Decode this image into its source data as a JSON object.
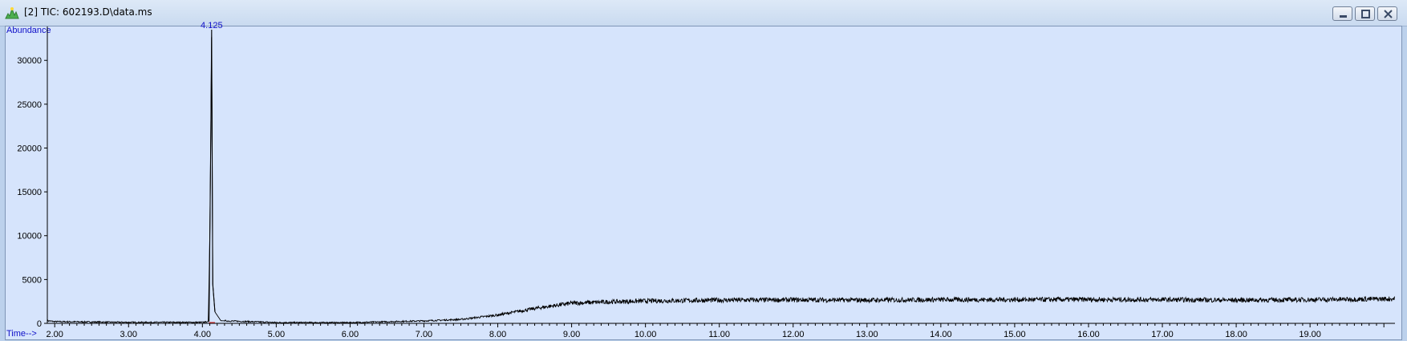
{
  "window": {
    "title": "[2] TIC: 602193.D\\data.ms",
    "icon": "chromatogram-app-icon",
    "controls": [
      "minimize",
      "restore",
      "close"
    ]
  },
  "chart_data": {
    "type": "line",
    "ylabel": "Abundance",
    "xlabel": "Time-->",
    "xlim": [
      1.9,
      20.15
    ],
    "ylim": [
      0,
      33500
    ],
    "xticks": [
      "2.00",
      "3.00",
      "4.00",
      "5.00",
      "6.00",
      "7.00",
      "8.00",
      "9.00",
      "10.00",
      "11.00",
      "12.00",
      "13.00",
      "14.00",
      "15.00",
      "16.00",
      "17.00",
      "18.00",
      "19.00"
    ],
    "yticks": [
      "0",
      "5000",
      "10000",
      "15000",
      "20000",
      "25000",
      "30000"
    ],
    "peak_label": "4.125",
    "peak": {
      "x": 4.125,
      "y": 33500
    },
    "series": [
      {
        "values": [
          [
            1.9,
            300
          ],
          [
            2.0,
            200
          ],
          [
            3.0,
            120
          ],
          [
            4.0,
            120
          ],
          [
            4.08,
            200
          ],
          [
            4.1,
            9500
          ],
          [
            4.115,
            22500
          ],
          [
            4.125,
            33500
          ],
          [
            4.14,
            4500
          ],
          [
            4.17,
            1300
          ],
          [
            4.25,
            300
          ],
          [
            5.0,
            100
          ],
          [
            6.0,
            90
          ],
          [
            7.0,
            280
          ],
          [
            7.5,
            450
          ],
          [
            8.0,
            950
          ],
          [
            8.5,
            1700
          ],
          [
            9.0,
            2300
          ],
          [
            9.5,
            2450
          ],
          [
            10.0,
            2550
          ],
          [
            11.0,
            2650
          ],
          [
            12.0,
            2680
          ],
          [
            13.0,
            2650
          ],
          [
            14.0,
            2700
          ],
          [
            15.0,
            2700
          ],
          [
            16.0,
            2720
          ],
          [
            17.0,
            2700
          ],
          [
            18.0,
            2650
          ],
          [
            19.0,
            2700
          ],
          [
            20.15,
            2800
          ]
        ]
      }
    ],
    "line_color": "#000000",
    "background": "#d6e4fc",
    "label_color": "#1010c8"
  }
}
